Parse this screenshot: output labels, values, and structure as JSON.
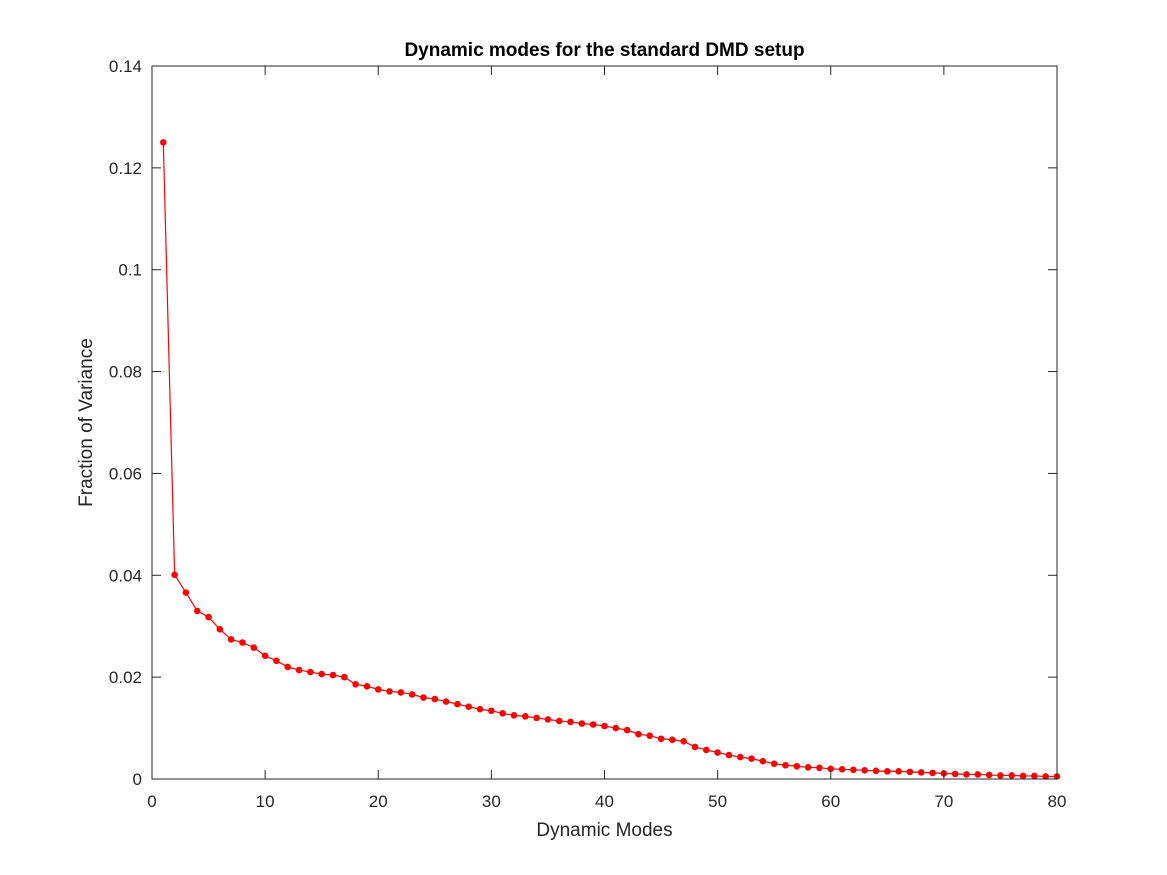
{
  "chart_data": {
    "type": "line",
    "title": "Dynamic modes for the standard DMD setup",
    "xlabel": "Dynamic Modes",
    "ylabel": "Fraction of Variance",
    "xlim": [
      0,
      80
    ],
    "ylim": [
      0,
      0.14
    ],
    "xticks": [
      0,
      10,
      20,
      30,
      40,
      50,
      60,
      70,
      80
    ],
    "xtick_labels": [
      "0",
      "10",
      "20",
      "30",
      "40",
      "50",
      "60",
      "70",
      "80"
    ],
    "yticks": [
      0,
      0.02,
      0.04,
      0.06,
      0.08,
      0.1,
      0.12,
      0.14
    ],
    "ytick_labels": [
      "0",
      "0.02",
      "0.04",
      "0.06",
      "0.08",
      "0.1",
      "0.12",
      "0.14"
    ],
    "grid": false,
    "box": true,
    "series": [
      {
        "color": "#ff0000",
        "marker": "dot",
        "x": [
          1,
          2,
          3,
          4,
          5,
          6,
          7,
          8,
          9,
          10,
          11,
          12,
          13,
          14,
          15,
          16,
          17,
          18,
          19,
          20,
          21,
          22,
          23,
          24,
          25,
          26,
          27,
          28,
          29,
          30,
          31,
          32,
          33,
          34,
          35,
          36,
          37,
          38,
          39,
          40,
          41,
          42,
          43,
          44,
          45,
          46,
          47,
          48,
          49,
          50,
          51,
          52,
          53,
          54,
          55,
          56,
          57,
          58,
          59,
          60,
          61,
          62,
          63,
          64,
          65,
          66,
          67,
          68,
          69,
          70,
          71,
          72,
          73,
          74,
          75,
          76,
          77,
          78,
          79,
          80
        ],
        "values": [
          0.125,
          0.0401,
          0.0366,
          0.033,
          0.0318,
          0.0294,
          0.0274,
          0.0268,
          0.0258,
          0.0242,
          0.0232,
          0.022,
          0.0214,
          0.021,
          0.0206,
          0.0204,
          0.02,
          0.0186,
          0.0182,
          0.0176,
          0.0172,
          0.017,
          0.0166,
          0.016,
          0.0157,
          0.0152,
          0.0147,
          0.0142,
          0.0137,
          0.0134,
          0.0129,
          0.0125,
          0.0123,
          0.012,
          0.0117,
          0.0114,
          0.0112,
          0.0109,
          0.0107,
          0.0104,
          0.01,
          0.0096,
          0.0088,
          0.0085,
          0.0079,
          0.0077,
          0.0074,
          0.0063,
          0.0057,
          0.0052,
          0.0047,
          0.0043,
          0.004,
          0.0035,
          0.003,
          0.0027,
          0.0025,
          0.0023,
          0.0022,
          0.002,
          0.0019,
          0.0018,
          0.0017,
          0.0016,
          0.0015,
          0.0015,
          0.0014,
          0.0013,
          0.0012,
          0.0011,
          0.001,
          0.0009,
          0.0009,
          0.0008,
          0.0007,
          0.0007,
          0.0006,
          0.0006,
          0.0005,
          0.0005
        ]
      }
    ]
  }
}
